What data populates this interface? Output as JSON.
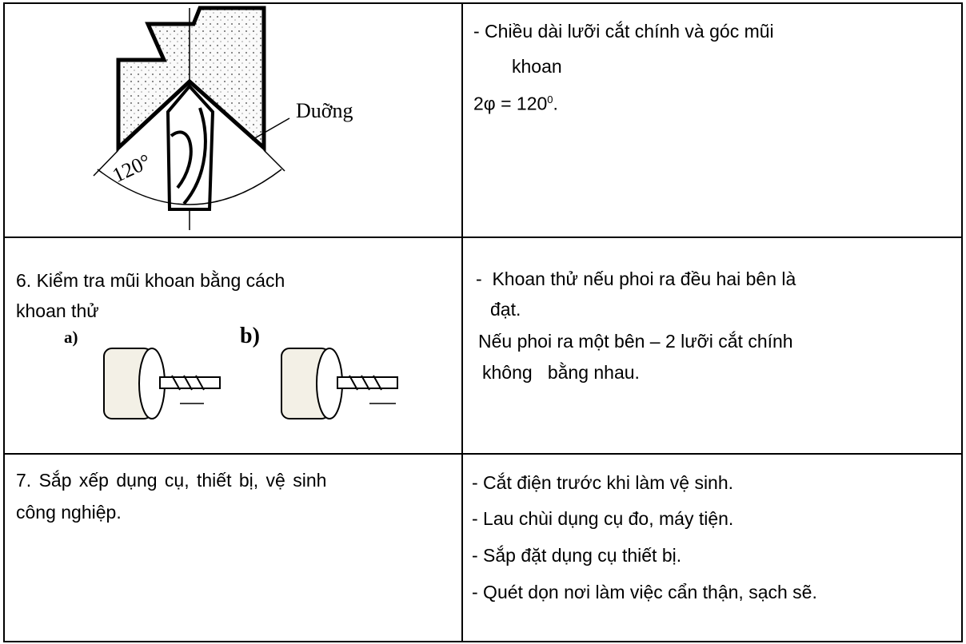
{
  "table": {
    "rows": [
      {
        "left": {
          "figure": {
            "label": "Duỡng",
            "angle": "120°"
          }
        },
        "right": {
          "lines": [
            "- Chiều dài lưỡi cắt chính và góc mũi",
            "khoan"
          ],
          "formula": {
            "text": "2φ = 120",
            "sup": "0",
            "end": "."
          }
        }
      },
      {
        "left": {
          "lines": [
            "6. Kiểm tra mũi khoan bằng cách",
            "khoan thử"
          ],
          "figures": [
            "a)",
            "b)"
          ]
        },
        "right": {
          "lines": [
            "-  Khoan thử nếu phoi ra đều hai bên là",
            "đạt.",
            "Nếu phoi ra một bên – 2 lưỡi cắt chính",
            "không   bằng nhau."
          ]
        }
      },
      {
        "left": {
          "lines": [
            "7. Sắp xếp dụng cụ, thiết bị, vệ sinh",
            "công nghiệp."
          ]
        },
        "right": {
          "lines": [
            "- Cắt điện trước khi làm vệ sinh.",
            "- Lau chùi dụng cụ đo, máy tiện.",
            "- Sắp đặt dụng cụ thiết bị.",
            "- Quét dọn nơi làm việc cẩn thận, sạch sẽ."
          ]
        }
      }
    ]
  }
}
